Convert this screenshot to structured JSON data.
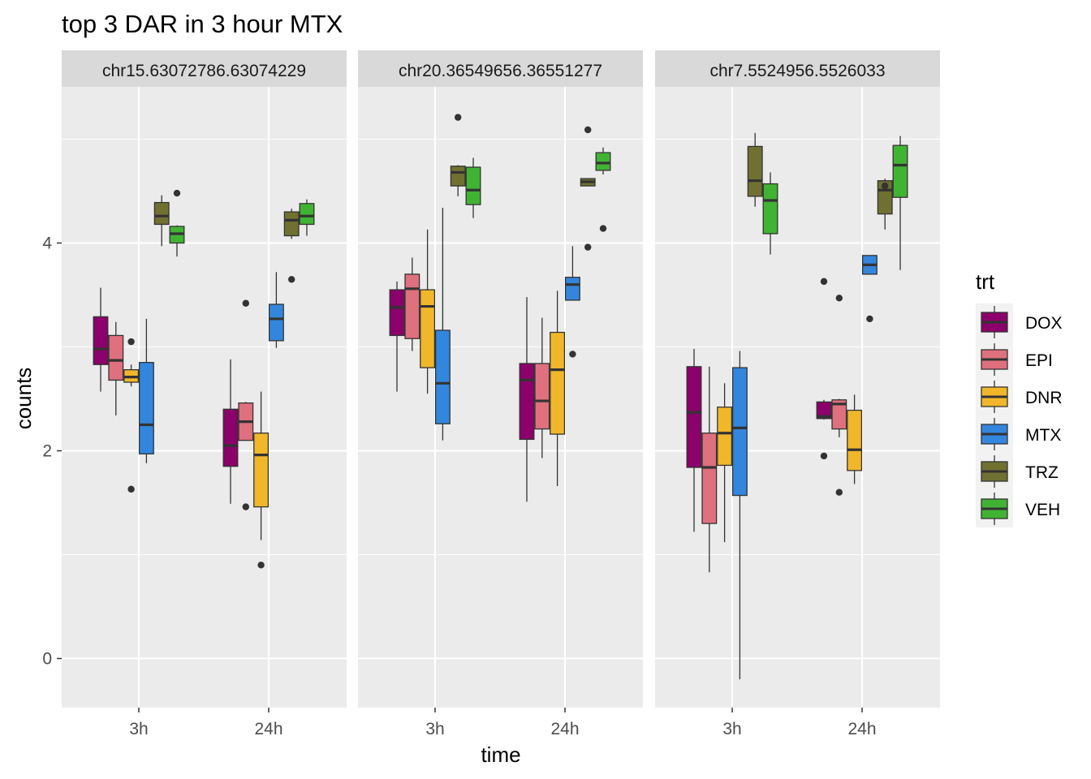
{
  "chart_data": {
    "type": "boxplot",
    "title": "top 3 DAR in 3 hour MTX",
    "xlabel": "time",
    "ylabel": "counts",
    "ylim": [
      -0.45,
      5.4
    ],
    "yticks": [
      0,
      2,
      4
    ],
    "grid": true,
    "categories": [
      "3h",
      "24h"
    ],
    "legend": {
      "title": "trt",
      "position": "right",
      "entries": [
        {
          "name": "DOX",
          "color": "#8B006B"
        },
        {
          "name": "EPI",
          "color": "#DF707E"
        },
        {
          "name": "DNR",
          "color": "#F1B72B"
        },
        {
          "name": "MTX",
          "color": "#3386DD"
        },
        {
          "name": "TRZ",
          "color": "#707031"
        },
        {
          "name": "VEH",
          "color": "#41B333"
        }
      ]
    },
    "panels": [
      {
        "label": "chr15.63072786.63074229",
        "boxes": {
          "3h": [
            {
              "trt": "DOX",
              "lo": 2.57,
              "q1": 2.83,
              "med": 2.98,
              "q3": 3.29,
              "hi": 3.57,
              "out": []
            },
            {
              "trt": "EPI",
              "lo": 2.34,
              "q1": 2.68,
              "med": 2.87,
              "q3": 3.11,
              "hi": 3.24,
              "out": []
            },
            {
              "trt": "DNR",
              "lo": 2.62,
              "q1": 2.66,
              "med": 2.71,
              "q3": 2.78,
              "hi": 2.83,
              "out": [
                3.05,
                1.63
              ]
            },
            {
              "trt": "MTX",
              "lo": 1.88,
              "q1": 1.97,
              "med": 2.25,
              "q3": 2.85,
              "hi": 3.27,
              "out": []
            },
            {
              "trt": "TRZ",
              "lo": 3.97,
              "q1": 4.18,
              "med": 4.26,
              "q3": 4.39,
              "hi": 4.46,
              "out": []
            },
            {
              "trt": "VEH",
              "lo": 3.87,
              "q1": 4.0,
              "med": 4.09,
              "q3": 4.16,
              "hi": 4.17,
              "out": [
                4.48
              ]
            }
          ],
          "24h": [
            {
              "trt": "DOX",
              "lo": 1.49,
              "q1": 1.85,
              "med": 2.05,
              "q3": 2.4,
              "hi": 2.88,
              "out": []
            },
            {
              "trt": "EPI",
              "lo": 2.1,
              "q1": 2.1,
              "med": 2.28,
              "q3": 2.46,
              "hi": 2.47,
              "out": [
                3.42,
                1.46
              ]
            },
            {
              "trt": "DNR",
              "lo": 1.14,
              "q1": 1.46,
              "med": 1.96,
              "q3": 2.17,
              "hi": 2.57,
              "out": [
                0.9
              ]
            },
            {
              "trt": "MTX",
              "lo": 2.99,
              "q1": 3.06,
              "med": 3.27,
              "q3": 3.41,
              "hi": 3.72,
              "out": []
            },
            {
              "trt": "TRZ",
              "lo": 4.04,
              "q1": 4.07,
              "med": 4.22,
              "q3": 4.3,
              "hi": 4.33,
              "out": [
                3.65
              ]
            },
            {
              "trt": "VEH",
              "lo": 4.07,
              "q1": 4.18,
              "med": 4.26,
              "q3": 4.38,
              "hi": 4.42,
              "out": []
            }
          ]
        }
      },
      {
        "label": "chr20.36549656.36551277",
        "boxes": {
          "3h": [
            {
              "trt": "DOX",
              "lo": 2.57,
              "q1": 3.11,
              "med": 3.38,
              "q3": 3.55,
              "hi": 3.63,
              "out": []
            },
            {
              "trt": "EPI",
              "lo": 2.96,
              "q1": 3.08,
              "med": 3.56,
              "q3": 3.7,
              "hi": 3.86,
              "out": []
            },
            {
              "trt": "DNR",
              "lo": 2.55,
              "q1": 2.8,
              "med": 3.39,
              "q3": 3.55,
              "hi": 4.13,
              "out": []
            },
            {
              "trt": "MTX",
              "lo": 2.1,
              "q1": 2.26,
              "med": 2.65,
              "q3": 3.16,
              "hi": 4.34,
              "out": []
            },
            {
              "trt": "TRZ",
              "lo": 4.45,
              "q1": 4.55,
              "med": 4.68,
              "q3": 4.74,
              "hi": 4.75,
              "out": [
                5.21
              ]
            },
            {
              "trt": "VEH",
              "lo": 4.24,
              "q1": 4.37,
              "med": 4.51,
              "q3": 4.73,
              "hi": 4.82,
              "out": []
            }
          ],
          "24h": [
            {
              "trt": "DOX",
              "lo": 1.51,
              "q1": 2.11,
              "med": 2.68,
              "q3": 2.84,
              "hi": 3.48,
              "out": []
            },
            {
              "trt": "EPI",
              "lo": 1.93,
              "q1": 2.21,
              "med": 2.48,
              "q3": 2.84,
              "hi": 3.28,
              "out": []
            },
            {
              "trt": "DNR",
              "lo": 1.66,
              "q1": 2.16,
              "med": 2.78,
              "q3": 3.14,
              "hi": 3.54,
              "out": []
            },
            {
              "trt": "MTX",
              "lo": 3.45,
              "q1": 3.45,
              "med": 3.6,
              "q3": 3.67,
              "hi": 3.97,
              "out": [
                2.93
              ]
            },
            {
              "trt": "TRZ",
              "lo": 4.55,
              "q1": 4.55,
              "med": 4.59,
              "q3": 4.62,
              "hi": 4.62,
              "out": [
                5.09,
                3.96
              ]
            },
            {
              "trt": "VEH",
              "lo": 4.66,
              "q1": 4.7,
              "med": 4.77,
              "q3": 4.87,
              "hi": 4.92,
              "out": [
                4.14
              ]
            }
          ]
        }
      },
      {
        "label": "chr7.5524956.5526033",
        "boxes": {
          "3h": [
            {
              "trt": "DOX",
              "lo": 1.22,
              "q1": 1.84,
              "med": 2.37,
              "q3": 2.81,
              "hi": 2.98,
              "out": []
            },
            {
              "trt": "EPI",
              "lo": 0.83,
              "q1": 1.3,
              "med": 1.84,
              "q3": 2.17,
              "hi": 2.81,
              "out": []
            },
            {
              "trt": "DNR",
              "lo": 1.12,
              "q1": 1.86,
              "med": 2.17,
              "q3": 2.42,
              "hi": 2.65,
              "out": []
            },
            {
              "trt": "MTX",
              "lo": -0.2,
              "q1": 1.57,
              "med": 2.22,
              "q3": 2.8,
              "hi": 2.96,
              "out": []
            },
            {
              "trt": "TRZ",
              "lo": 4.35,
              "q1": 4.45,
              "med": 4.6,
              "q3": 4.93,
              "hi": 5.06,
              "out": []
            },
            {
              "trt": "VEH",
              "lo": 3.89,
              "q1": 4.09,
              "med": 4.41,
              "q3": 4.57,
              "hi": 4.68,
              "out": []
            }
          ],
          "24h": [
            {
              "trt": "DOX",
              "lo": 2.3,
              "q1": 2.31,
              "med": 2.33,
              "q3": 2.47,
              "hi": 2.49,
              "out": [
                3.63,
                1.95
              ]
            },
            {
              "trt": "EPI",
              "lo": 2.13,
              "q1": 2.21,
              "med": 2.45,
              "q3": 2.49,
              "hi": 2.5,
              "out": [
                3.47,
                1.6
              ]
            },
            {
              "trt": "DNR",
              "lo": 1.68,
              "q1": 1.81,
              "med": 2.01,
              "q3": 2.39,
              "hi": 2.54,
              "out": []
            },
            {
              "trt": "MTX",
              "lo": 3.7,
              "q1": 3.7,
              "med": 3.79,
              "q3": 3.88,
              "hi": 3.88,
              "out": [
                3.27
              ]
            },
            {
              "trt": "TRZ",
              "lo": 4.13,
              "q1": 4.28,
              "med": 4.51,
              "q3": 4.6,
              "hi": 4.62,
              "out": [
                4.55
              ]
            },
            {
              "trt": "VEH",
              "lo": 3.74,
              "q1": 4.44,
              "med": 4.75,
              "q3": 4.94,
              "hi": 5.03,
              "out": []
            }
          ]
        }
      }
    ]
  }
}
